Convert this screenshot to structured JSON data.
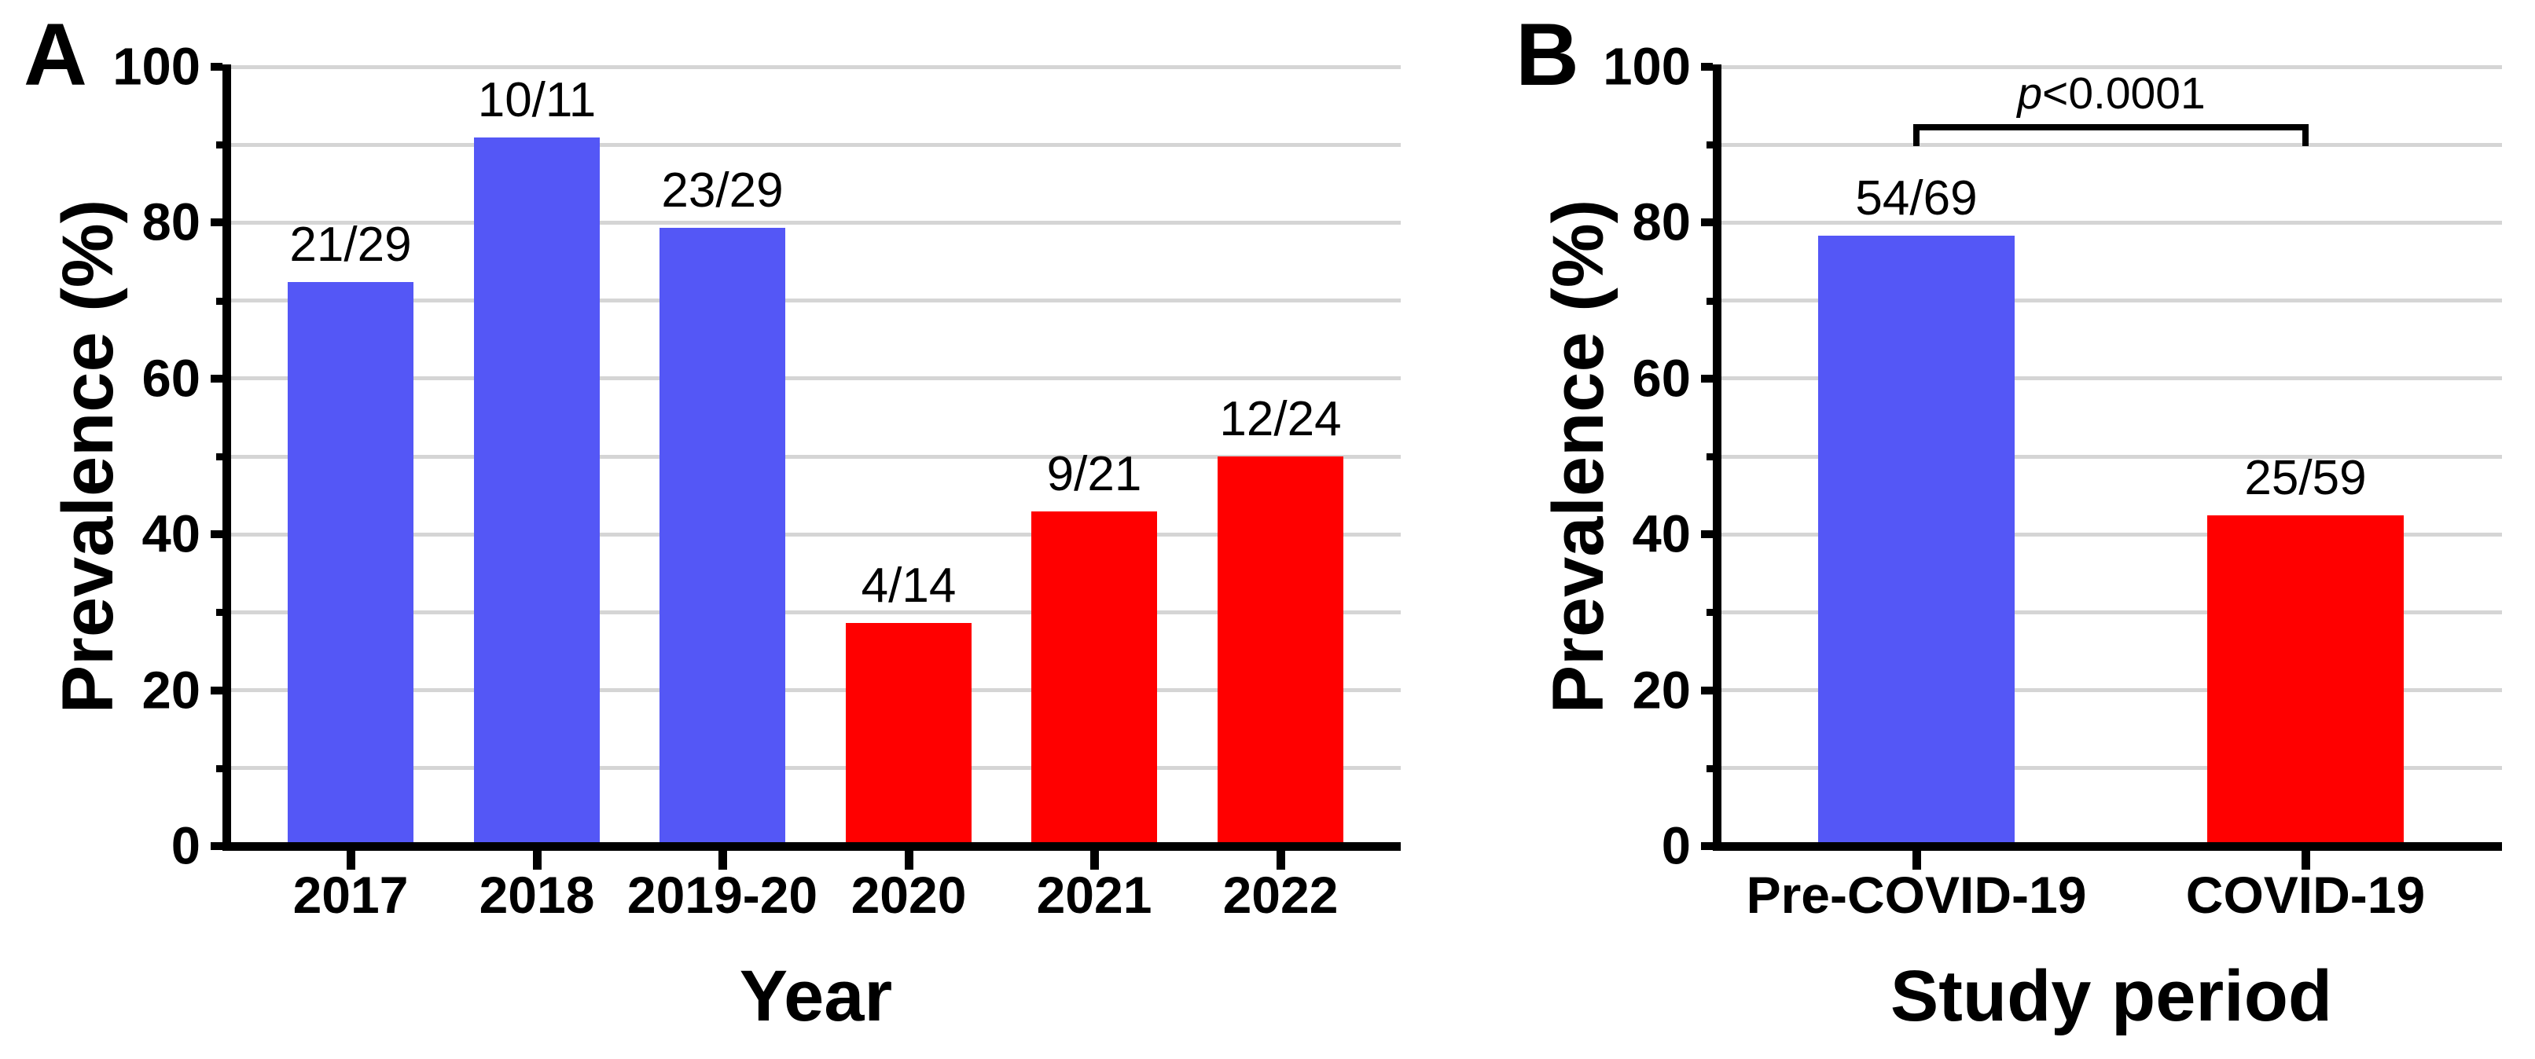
{
  "figure": {
    "panel_letters": [
      "A",
      "B"
    ],
    "colors": {
      "pre_covid_blue": "#5457F6",
      "covid_red": "#FF0000",
      "gridline": "#D5D5D5",
      "axis": "#000000",
      "background": "#FFFFFF"
    }
  },
  "chart_data": [
    {
      "type": "bar",
      "panel": "A",
      "xlabel": "Year",
      "ylabel": "Prevalence (%)",
      "ylim": [
        0,
        100
      ],
      "ytick_step": 20,
      "minor_tick_step": 10,
      "grid": true,
      "legend": false,
      "categories": [
        "2017",
        "2018",
        "2019-20",
        "2020",
        "2021",
        "2022"
      ],
      "values": [
        72.4,
        90.9,
        79.3,
        28.6,
        42.9,
        50.0
      ],
      "bar_labels": [
        "21/29",
        "10/11",
        "23/29",
        "4/14",
        "9/21",
        "12/24"
      ],
      "bar_colors": [
        "#5457F6",
        "#5457F6",
        "#5457F6",
        "#FF0000",
        "#FF0000",
        "#FF0000"
      ]
    },
    {
      "type": "bar",
      "panel": "B",
      "xlabel": "Study period",
      "ylabel": "Prevalence (%)",
      "ylim": [
        0,
        100
      ],
      "ytick_step": 20,
      "minor_tick_step": 10,
      "grid": true,
      "legend": false,
      "categories": [
        "Pre-COVID-19",
        "COVID-19"
      ],
      "values": [
        78.3,
        42.4
      ],
      "bar_labels": [
        "54/69",
        "25/59"
      ],
      "bar_colors": [
        "#5457F6",
        "#FF0000"
      ],
      "annotation": {
        "symbol": "p",
        "rest": "<0.0001",
        "between": [
          "Pre-COVID-19",
          "COVID-19"
        ]
      }
    }
  ]
}
